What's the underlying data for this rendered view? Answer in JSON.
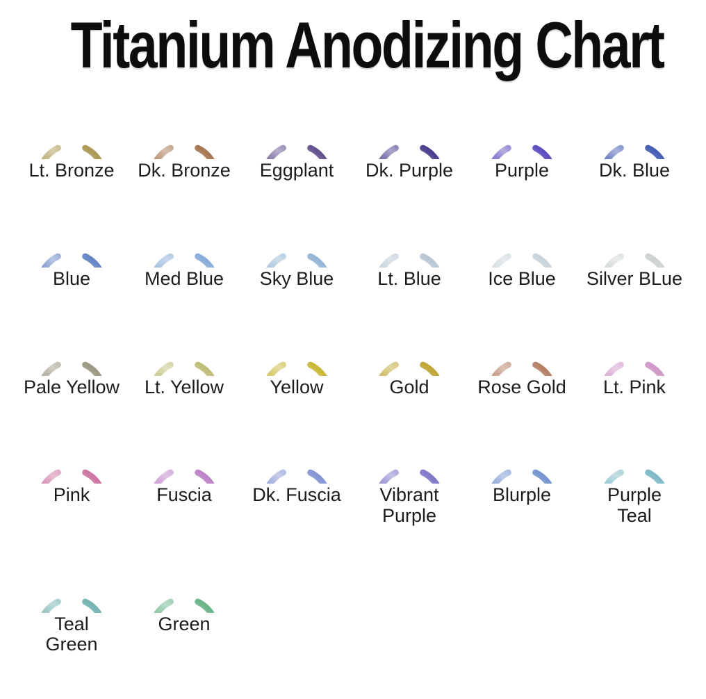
{
  "title": "Titanium Anodizing Chart",
  "colors": {
    "background": "#ffffff",
    "title_text": "#0d0d0d",
    "label_text": "#1c1c1c"
  },
  "rings": [
    {
      "label": "Lt. Bronze",
      "color": "#a8954e"
    },
    {
      "label": "Dk. Bronze",
      "color": "#a3714a"
    },
    {
      "label": "Eggplant",
      "color": "#5d4a8a"
    },
    {
      "label": "Dk. Purple",
      "color": "#42368a"
    },
    {
      "label": "Purple",
      "color": "#5646bd"
    },
    {
      "label": "Dk. Blue",
      "color": "#3d55b2"
    },
    {
      "label": "Blue",
      "color": "#5f80c2"
    },
    {
      "label": "Med Blue",
      "color": "#85a9d8"
    },
    {
      "label": "Sky Blue",
      "color": "#8fb3d4"
    },
    {
      "label": "Lt. Blue",
      "color": "#b5c4d3"
    },
    {
      "label": "Ice Blue",
      "color": "#c5d3da"
    },
    {
      "label": "Silver BLue",
      "color": "#c9d1ce"
    },
    {
      "label": "Pale Yellow",
      "color": "#98947f"
    },
    {
      "label": "Lt. Yellow",
      "color": "#bdb972"
    },
    {
      "label": "Yellow",
      "color": "#c6b52f"
    },
    {
      "label": "Gold",
      "color": "#bda22e"
    },
    {
      "label": "Rose Gold",
      "color": "#b27a5e"
    },
    {
      "label": "Lt. Pink",
      "color": "#cf94c6"
    },
    {
      "label": "Pink",
      "color": "#c9709e"
    },
    {
      "label": "Fuscia",
      "color": "#b97dc5"
    },
    {
      "label": "Dk. Fuscia",
      "color": "#8090d2"
    },
    {
      "label": "Vibrant\nPurple",
      "color": "#7a73c6"
    },
    {
      "label": "Blurple",
      "color": "#6e90cf"
    },
    {
      "label": "Purple\nTeal",
      "color": "#79b7c4"
    },
    {
      "label": "Teal\nGreen",
      "color": "#6fb0ae"
    },
    {
      "label": "Green",
      "color": "#63b184"
    }
  ],
  "chart_data": {
    "type": "table",
    "title": "Titanium Anodizing Chart",
    "columns": [
      "color_name",
      "anodized_color_hex"
    ],
    "rows": [
      [
        "Lt. Bronze",
        "#a8954e"
      ],
      [
        "Dk. Bronze",
        "#a3714a"
      ],
      [
        "Eggplant",
        "#5d4a8a"
      ],
      [
        "Dk. Purple",
        "#42368a"
      ],
      [
        "Purple",
        "#5646bd"
      ],
      [
        "Dk. Blue",
        "#3d55b2"
      ],
      [
        "Blue",
        "#5f80c2"
      ],
      [
        "Med Blue",
        "#85a9d8"
      ],
      [
        "Sky Blue",
        "#8fb3d4"
      ],
      [
        "Lt. Blue",
        "#b5c4d3"
      ],
      [
        "Ice Blue",
        "#c5d3da"
      ],
      [
        "Silver BLue",
        "#c9d1ce"
      ],
      [
        "Pale Yellow",
        "#98947f"
      ],
      [
        "Lt. Yellow",
        "#bdb972"
      ],
      [
        "Yellow",
        "#c6b52f"
      ],
      [
        "Gold",
        "#bda22e"
      ],
      [
        "Rose Gold",
        "#b27a5e"
      ],
      [
        "Lt. Pink",
        "#cf94c6"
      ],
      [
        "Pink",
        "#c9709e"
      ],
      [
        "Fuscia",
        "#b97dc5"
      ],
      [
        "Dk. Fuscia",
        "#8090d2"
      ],
      [
        "Vibrant Purple",
        "#7a73c6"
      ],
      [
        "Blurple",
        "#6e90cf"
      ],
      [
        "Purple Teal",
        "#79b7c4"
      ],
      [
        "Teal Green",
        "#6fb0ae"
      ],
      [
        "Green",
        "#63b184"
      ]
    ],
    "layout": {
      "columns_per_row": 6,
      "legend_position": "none",
      "grid": false
    }
  }
}
